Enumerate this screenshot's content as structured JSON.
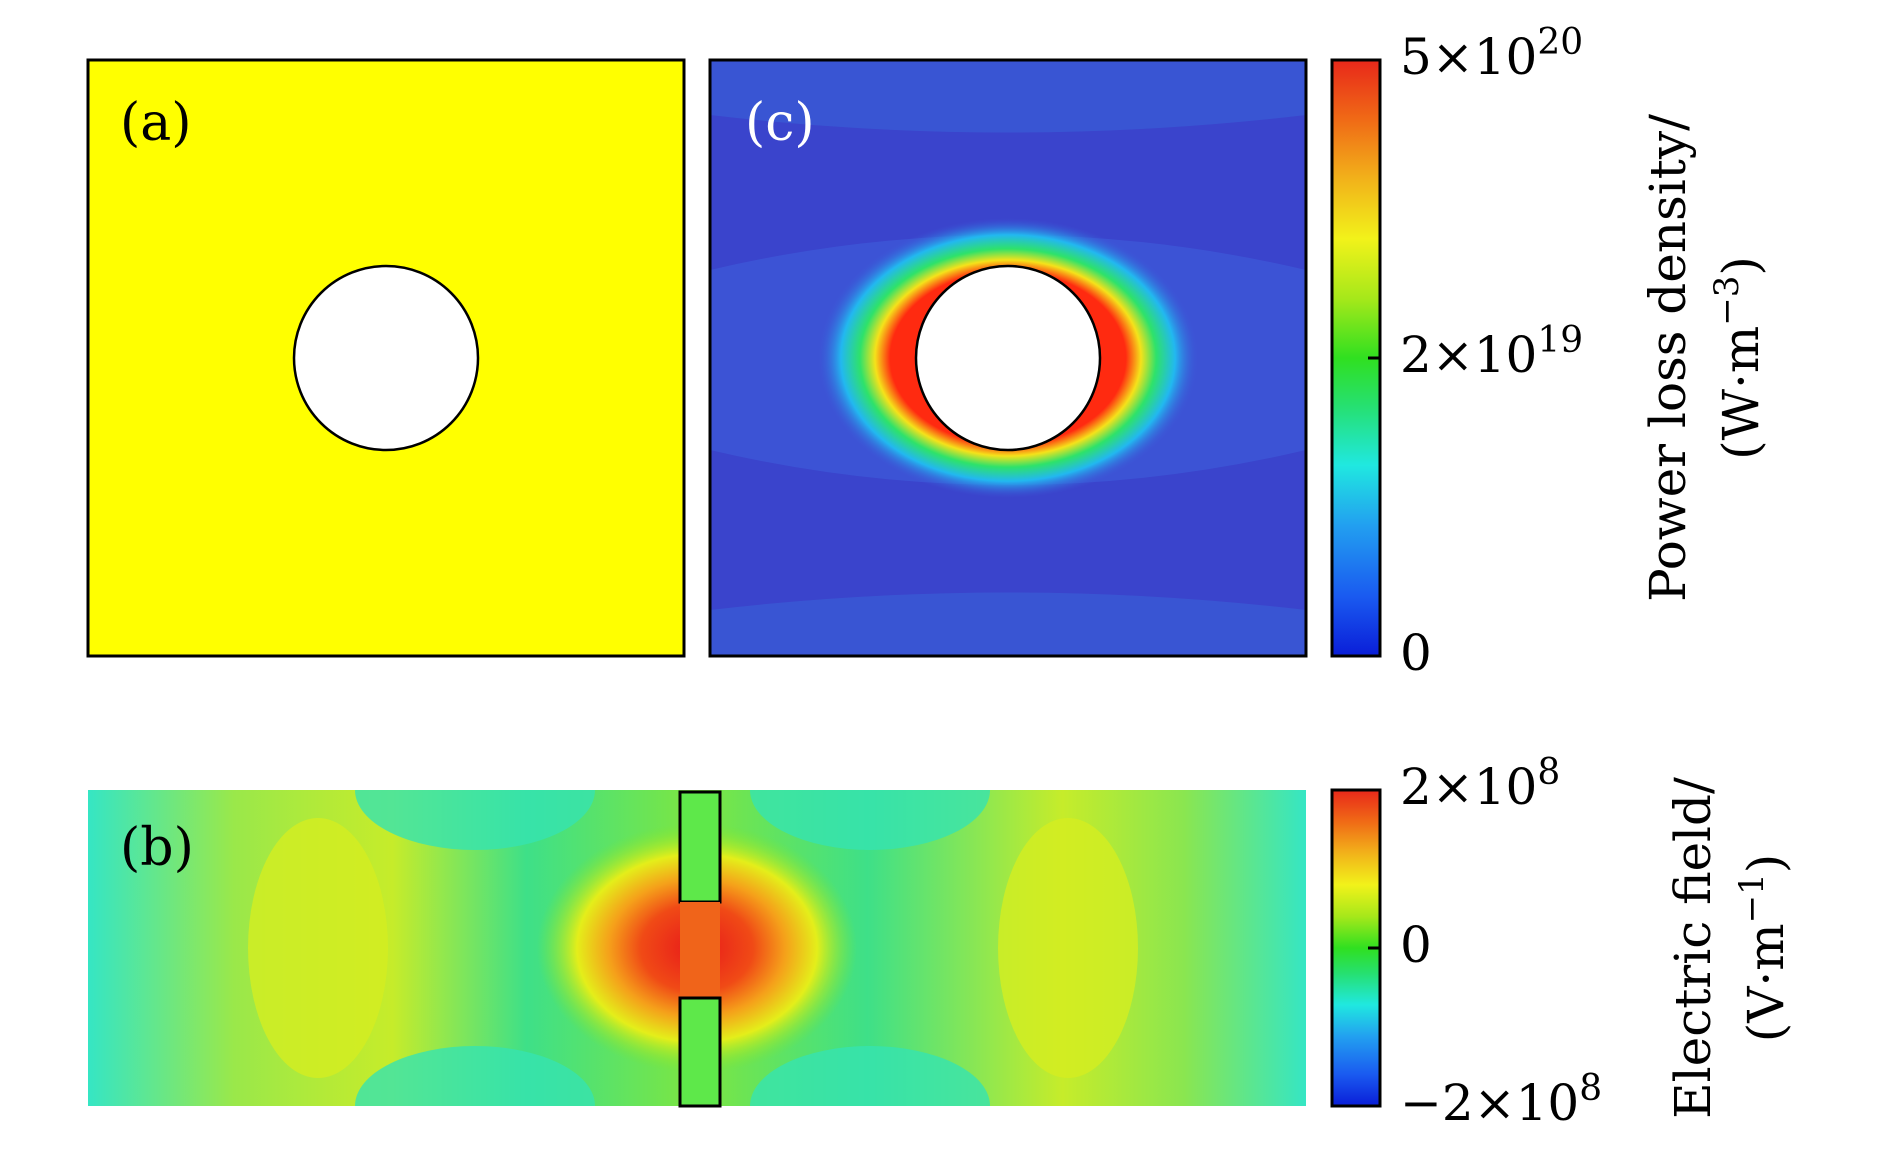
{
  "panels": {
    "a": {
      "label": "(a)",
      "fill_color": "#ffff00"
    },
    "b": {
      "label": "(b)"
    },
    "c": {
      "label": "(c)",
      "background_color": "#3a44cc"
    }
  },
  "colorbars": {
    "power": {
      "axis_label_line1": "Power loss density/",
      "axis_label_line2": "(W·m",
      "axis_label_exp": "−3",
      "axis_label_close": ")",
      "ticks": {
        "top": {
          "mantissa": "5",
          "times": "×10",
          "exp": "20"
        },
        "middle": {
          "mantissa": "2",
          "times": "×10",
          "exp": "19"
        },
        "bottom": {
          "mantissa": "0"
        }
      }
    },
    "field": {
      "axis_label_line1": "Electric field/",
      "axis_label_line2": "(V·m",
      "axis_label_exp": "−1",
      "axis_label_close": ")",
      "ticks": {
        "top": {
          "mantissa": "2",
          "times": "×10",
          "exp": "8"
        },
        "middle": {
          "mantissa": "0"
        },
        "bottom": {
          "mantissa": "−2",
          "times": "×10",
          "exp": "8"
        }
      }
    }
  },
  "colormap": [
    "#0a1ed8",
    "#1a5af0",
    "#22a0f0",
    "#20e8e0",
    "#26e070",
    "#30e020",
    "#a6e81a",
    "#f2f21a",
    "#f2b21a",
    "#f06a16",
    "#e8281a"
  ]
}
